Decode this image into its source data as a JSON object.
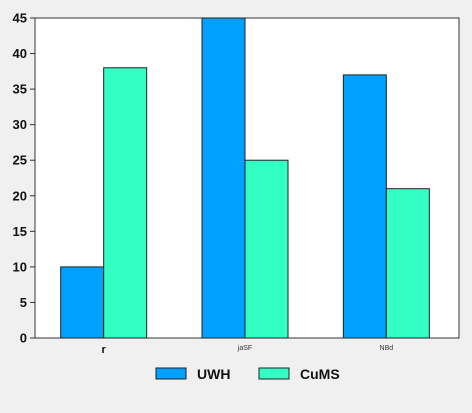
{
  "chart_data": {
    "type": "bar",
    "categories": [
      "r",
      "jaSF",
      "NBd"
    ],
    "series": [
      {
        "name": "UWH",
        "values": [
          10,
          45,
          37
        ],
        "color": "#00a0ff"
      },
      {
        "name": "CuMS",
        "values": [
          38,
          25,
          21
        ],
        "color": "#33ffc4"
      }
    ],
    "ylim": [
      0,
      45
    ],
    "yticks": [
      0,
      5,
      10,
      15,
      20,
      25,
      30,
      35,
      40,
      45
    ],
    "grid": false,
    "legend_position": "bottom",
    "title": "",
    "xlabel": "",
    "ylabel": ""
  }
}
